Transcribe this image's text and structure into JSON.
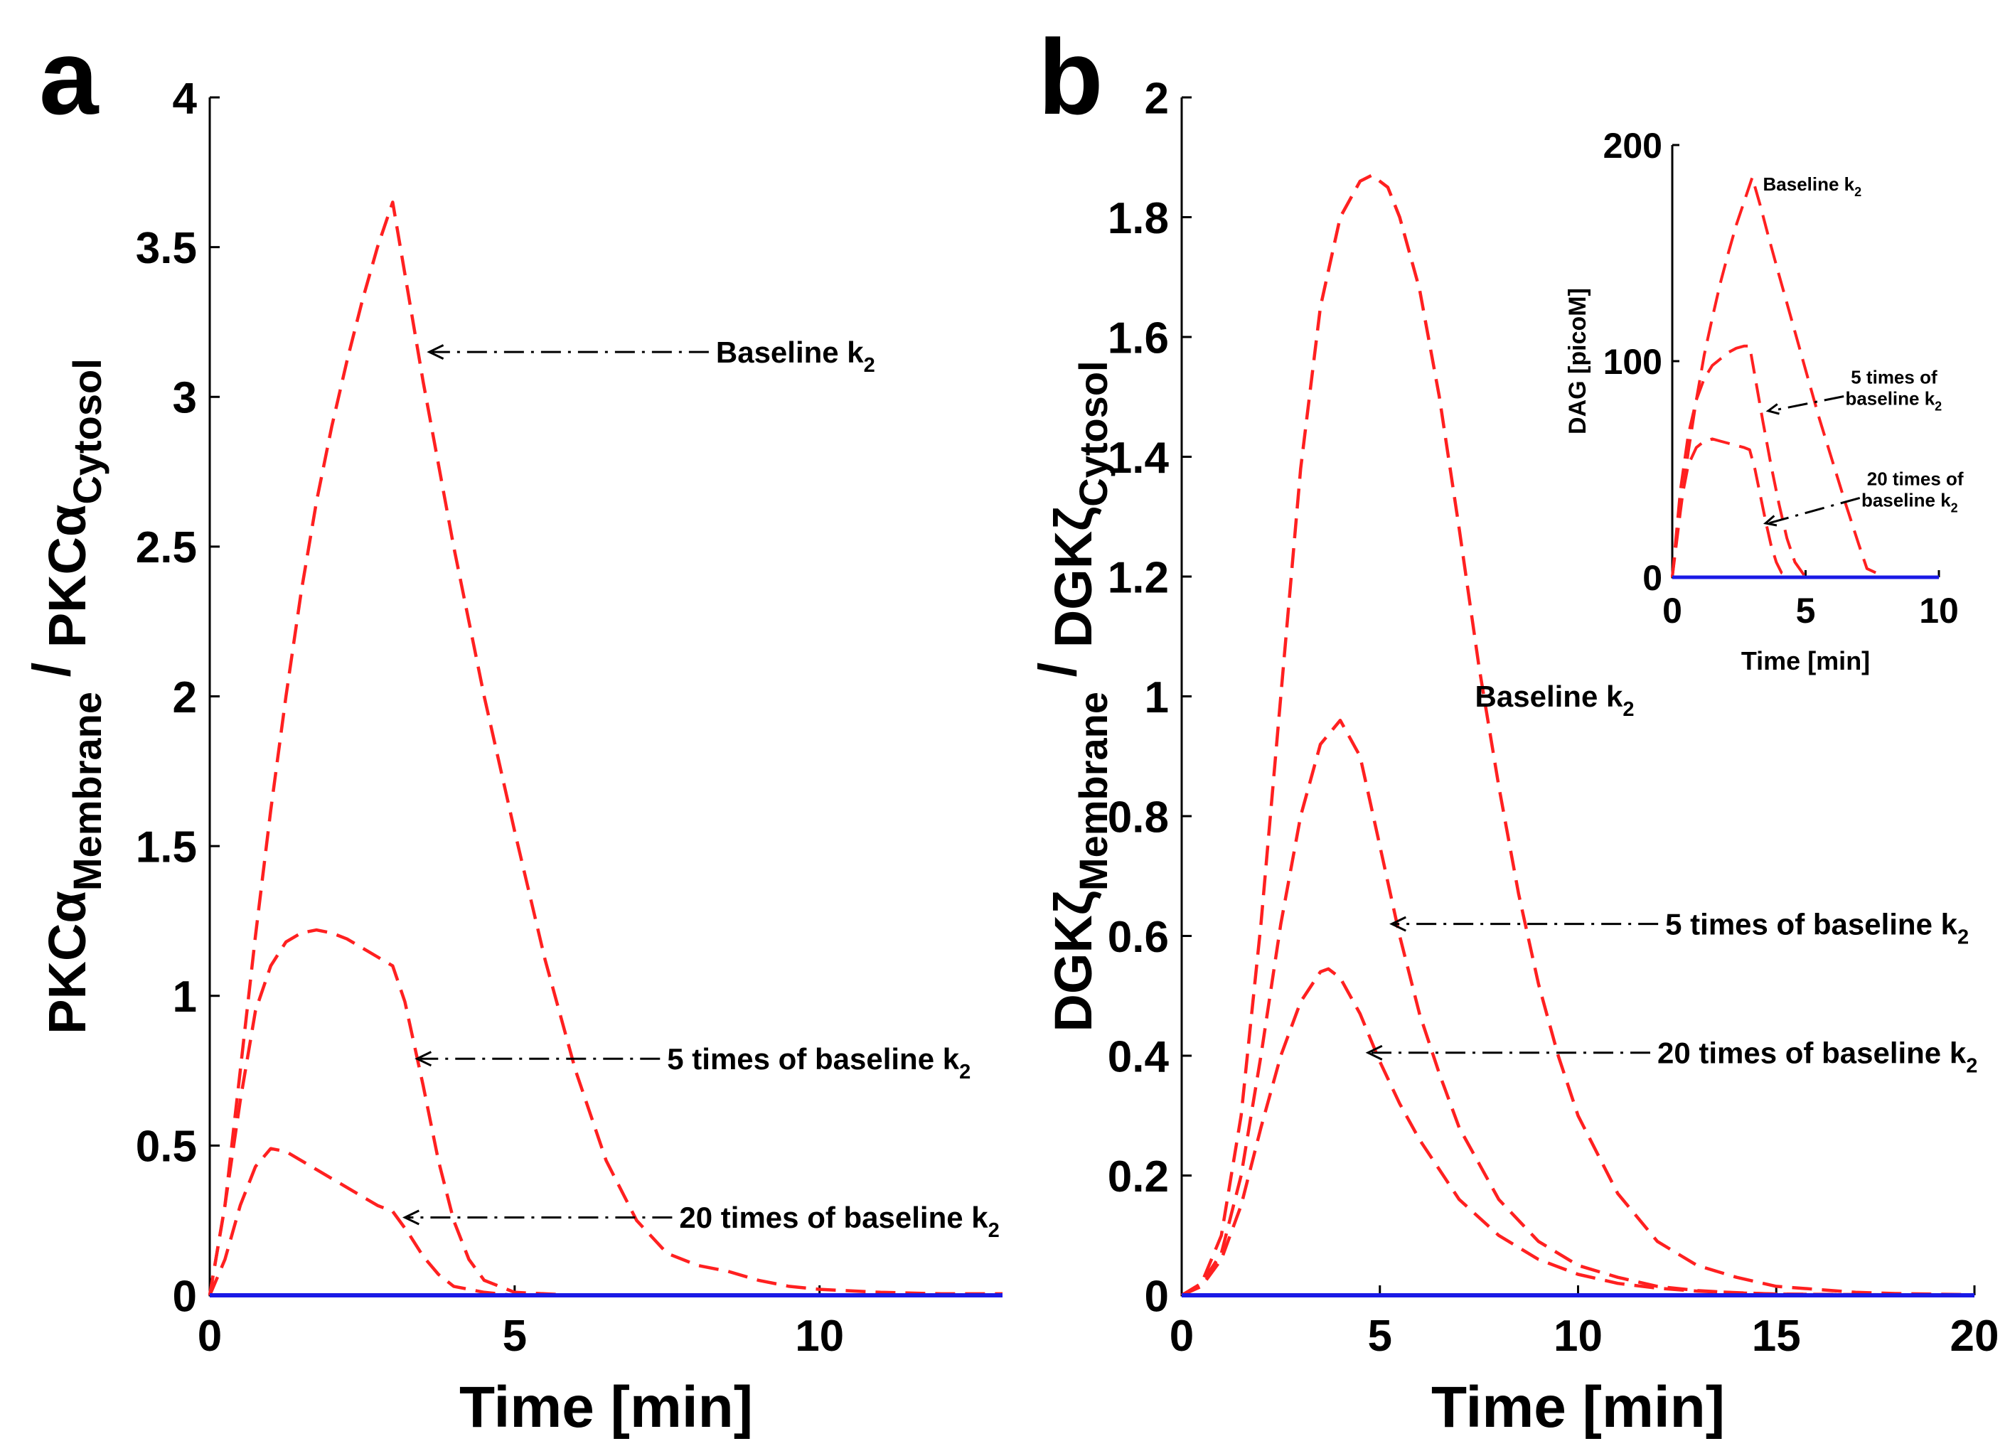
{
  "chart_data": [
    {
      "type": "line",
      "panel": "a",
      "xlabel": "Time [min]",
      "ylabel": {
        "main1": "PKC",
        "greek1": "α",
        "sub1": "Membrane",
        "sep": " / ",
        "main2": "PKC",
        "greek2": "α",
        "sub2": "Cytosol"
      },
      "xlim": [
        0,
        13
      ],
      "ylim": [
        0,
        4
      ],
      "xticks": [
        "0",
        "5",
        "10"
      ],
      "xtick_values": [
        0,
        5,
        10
      ],
      "yticks": [
        "0",
        "0.5",
        "1",
        "1.5",
        "2",
        "2.5",
        "3",
        "3.5",
        "4"
      ],
      "ytick_values": [
        0,
        0.5,
        1,
        1.5,
        2,
        2.5,
        3,
        3.5,
        4
      ],
      "colors": {
        "curves": "#ff2020",
        "baseline": "#1a1ae6"
      },
      "series": [
        {
          "x": [
            0,
            0.25,
            0.5,
            0.75,
            1,
            1.25,
            1.5,
            1.75,
            2,
            2.25,
            2.5,
            2.75,
            3.0,
            3.25,
            3.5,
            4,
            4.5,
            5,
            5.5,
            6,
            6.5,
            7,
            7.5,
            8,
            8.5,
            9,
            9.5,
            10,
            11,
            12,
            13
          ],
          "y": [
            0,
            0.3,
            0.75,
            1.2,
            1.62,
            2.0,
            2.35,
            2.65,
            2.9,
            3.12,
            3.32,
            3.5,
            3.65,
            3.35,
            3.05,
            2.5,
            2.0,
            1.55,
            1.12,
            0.75,
            0.45,
            0.25,
            0.14,
            0.1,
            0.08,
            0.05,
            0.03,
            0.02,
            0.01,
            0.005,
            0.005
          ]
        },
        {
          "x": [
            0,
            0.25,
            0.5,
            0.75,
            1,
            1.25,
            1.5,
            1.75,
            2,
            2.25,
            2.5,
            2.75,
            3.0,
            3.2,
            3.5,
            3.75,
            4,
            4.25,
            4.5,
            5,
            5.5,
            6,
            7,
            13
          ],
          "y": [
            0,
            0.3,
            0.65,
            0.95,
            1.1,
            1.18,
            1.21,
            1.22,
            1.21,
            1.19,
            1.16,
            1.13,
            1.1,
            0.98,
            0.7,
            0.45,
            0.25,
            0.12,
            0.05,
            0.01,
            0.005,
            0,
            0,
            0
          ]
        },
        {
          "x": [
            0,
            0.25,
            0.5,
            0.75,
            1,
            1.25,
            1.5,
            1.75,
            2,
            2.25,
            2.5,
            2.75,
            3.0,
            3.25,
            3.5,
            3.75,
            4,
            4.5,
            5,
            13
          ],
          "y": [
            0,
            0.12,
            0.3,
            0.43,
            0.49,
            0.48,
            0.45,
            0.42,
            0.39,
            0.36,
            0.33,
            0.3,
            0.28,
            0.21,
            0.13,
            0.07,
            0.03,
            0.01,
            0,
            0
          ]
        },
        {
          "x": [
            0,
            13
          ],
          "y": [
            0,
            0
          ],
          "role": "baseline"
        }
      ],
      "annotations": [
        {
          "text": "Baseline k",
          "sub": "2",
          "target_x": 3.6,
          "target_y": 3.15,
          "text_x": 8.3,
          "text_y": 3.15
        },
        {
          "text": "5 times of baseline k",
          "sub": "2",
          "target_x": 3.4,
          "target_y": 0.79,
          "text_x": 7.5,
          "text_y": 0.79
        },
        {
          "text": "20 times of baseline k",
          "sub": "2",
          "target_x": 3.2,
          "target_y": 0.26,
          "text_x": 7.7,
          "text_y": 0.26
        }
      ]
    },
    {
      "type": "line",
      "panel": "b",
      "xlabel": "Time [min]",
      "ylabel": {
        "main1": "DGK",
        "greek1": "ζ",
        "sub1": "Membrane",
        "sep": " / ",
        "main2": "DGK",
        "greek2": "ζ",
        "sub2": "Cytosol"
      },
      "xlim": [
        0,
        20
      ],
      "ylim": [
        0,
        2
      ],
      "xticks": [
        "0",
        "5",
        "10",
        "15",
        "20"
      ],
      "xtick_values": [
        0,
        5,
        10,
        15,
        20
      ],
      "yticks": [
        "0",
        "0.2",
        "0.4",
        "0.6",
        "0.8",
        "1",
        "1.2",
        "1.4",
        "1.6",
        "1.8",
        "2"
      ],
      "ytick_values": [
        0,
        0.2,
        0.4,
        0.6,
        0.8,
        1,
        1.2,
        1.4,
        1.6,
        1.8,
        2
      ],
      "series": [
        {
          "x": [
            0,
            0.5,
            1,
            1.5,
            2,
            2.5,
            3,
            3.5,
            4,
            4.5,
            4.8,
            5.2,
            5.5,
            6,
            6.5,
            7,
            7.5,
            8,
            8.5,
            9,
            9.5,
            10,
            11,
            12,
            13,
            14,
            15,
            16,
            17,
            18,
            19,
            20
          ],
          "y": [
            0,
            0.02,
            0.1,
            0.3,
            0.62,
            1.0,
            1.38,
            1.65,
            1.8,
            1.86,
            1.87,
            1.85,
            1.8,
            1.68,
            1.5,
            1.28,
            1.05,
            0.85,
            0.67,
            0.52,
            0.4,
            0.3,
            0.17,
            0.09,
            0.05,
            0.03,
            0.015,
            0.01,
            0.005,
            0.003,
            0.002,
            0.001
          ]
        },
        {
          "x": [
            0,
            0.5,
            1,
            1.5,
            2,
            2.5,
            3,
            3.5,
            4,
            4.5,
            5,
            5.5,
            6,
            6.5,
            7,
            8,
            9,
            10,
            11,
            12,
            13,
            14,
            15,
            17,
            20
          ],
          "y": [
            0,
            0.02,
            0.07,
            0.2,
            0.4,
            0.62,
            0.8,
            0.92,
            0.96,
            0.9,
            0.75,
            0.6,
            0.47,
            0.37,
            0.28,
            0.16,
            0.09,
            0.05,
            0.03,
            0.015,
            0.008,
            0.004,
            0.002,
            0.001,
            0
          ]
        },
        {
          "x": [
            0,
            0.5,
            1,
            1.5,
            2,
            2.5,
            3,
            3.5,
            3.7,
            4,
            4.5,
            5,
            5.5,
            6,
            7,
            8,
            9,
            10,
            11,
            12,
            13,
            15,
            20
          ],
          "y": [
            0,
            0.015,
            0.06,
            0.15,
            0.28,
            0.4,
            0.49,
            0.54,
            0.545,
            0.53,
            0.47,
            0.39,
            0.32,
            0.26,
            0.16,
            0.1,
            0.06,
            0.035,
            0.02,
            0.012,
            0.007,
            0.002,
            0
          ]
        },
        {
          "x": [
            0,
            20
          ],
          "y": [
            0,
            0
          ],
          "role": "baseline"
        }
      ],
      "annotations": [
        {
          "text": "Baseline k",
          "sub": "2",
          "text_x": 7.4,
          "text_y": 1.0
        },
        {
          "text": "5 times of baseline k",
          "sub": "2",
          "target_x": 5.3,
          "target_y": 0.62,
          "text_x": 12.2,
          "text_y": 0.62
        },
        {
          "text": "20 times of baseline k",
          "sub": "2",
          "target_x": 4.7,
          "target_y": 0.405,
          "text_x": 12.0,
          "text_y": 0.405
        }
      ]
    },
    {
      "type": "line",
      "panel": "b-inset",
      "xlabel": "Time [min]",
      "ylabel": "DAG [picoM]",
      "xlim": [
        0,
        10
      ],
      "ylim": [
        0,
        200
      ],
      "xticks": [
        "0",
        "5",
        "10"
      ],
      "xtick_values": [
        0,
        5,
        10
      ],
      "yticks": [
        "0",
        "100",
        "200"
      ],
      "ytick_values": [
        0,
        100,
        200
      ],
      "series": [
        {
          "x": [
            0,
            0.3,
            0.6,
            0.9,
            1.2,
            1.5,
            1.8,
            2.1,
            2.4,
            2.7,
            3.0,
            3.3,
            3.6,
            4,
            4.5,
            5,
            5.5,
            6,
            6.5,
            7,
            7.3,
            8,
            10
          ],
          "y": [
            0,
            30,
            58,
            82,
            103,
            120,
            136,
            150,
            163,
            174,
            185,
            172,
            158,
            140,
            118,
            96,
            74,
            54,
            34,
            15,
            4,
            0,
            0
          ]
        },
        {
          "x": [
            0,
            0.3,
            0.6,
            0.9,
            1.2,
            1.5,
            1.8,
            2.1,
            2.4,
            2.7,
            2.9,
            3.1,
            3.4,
            3.7,
            4.0,
            4.3,
            4.6,
            5.0,
            10
          ],
          "y": [
            0,
            40,
            66,
            82,
            92,
            98,
            101,
            104,
            106,
            107,
            107,
            93,
            72,
            52,
            34,
            18,
            7,
            0,
            0
          ]
        },
        {
          "x": [
            0,
            0.3,
            0.6,
            0.9,
            1.2,
            1.5,
            1.8,
            2.1,
            2.4,
            2.7,
            2.9,
            3.1,
            3.3,
            3.5,
            3.7,
            3.9,
            4.1,
            4.4,
            10
          ],
          "y": [
            0,
            33,
            52,
            60,
            63,
            64,
            63,
            62,
            61,
            60,
            59,
            50,
            38,
            26,
            15,
            7,
            2,
            0,
            0
          ]
        },
        {
          "x": [
            0,
            10
          ],
          "y": [
            0,
            0
          ],
          "role": "baseline"
        }
      ],
      "annotations": [
        {
          "text": "Baseline k",
          "sub": "2",
          "text_x": 3.4,
          "text_y": 182
        },
        {
          "text": "5 times of baseline k",
          "line1": "5 times of",
          "line2": "baseline k",
          "sub": "2",
          "target_x": 3.6,
          "target_y": 77,
          "text_x": 6.7,
          "text_y": 87
        },
        {
          "text": "20 times of baseline k",
          "line1": "20 times of",
          "line2": "baseline k",
          "sub": "2",
          "target_x": 3.5,
          "target_y": 25,
          "text_x": 7.3,
          "text_y": 40
        }
      ]
    }
  ]
}
